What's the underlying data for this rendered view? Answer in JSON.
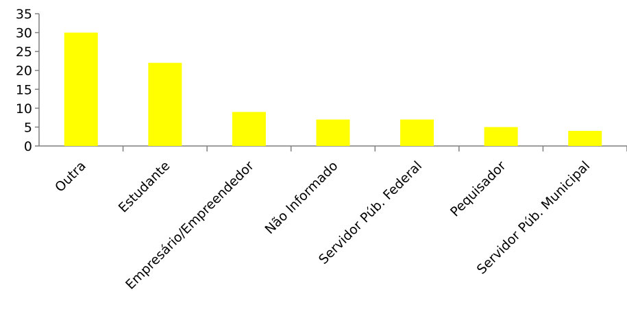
{
  "chart_data": {
    "type": "bar",
    "categories": [
      "Outra",
      "Estudante",
      "Empresário/Empreendedor",
      "Não Informado",
      "Servidor Púb. Federal",
      "Pequisador",
      "Servidor Púb. Municipal"
    ],
    "values": [
      30,
      22,
      9,
      7,
      7,
      5,
      4
    ],
    "title": "",
    "xlabel": "",
    "ylabel": "",
    "ylim": [
      0,
      35
    ],
    "yticks": [
      0,
      5,
      10,
      15,
      20,
      25,
      30,
      35
    ],
    "bar_color": "#ffff00",
    "grid": false,
    "legend": "none"
  }
}
